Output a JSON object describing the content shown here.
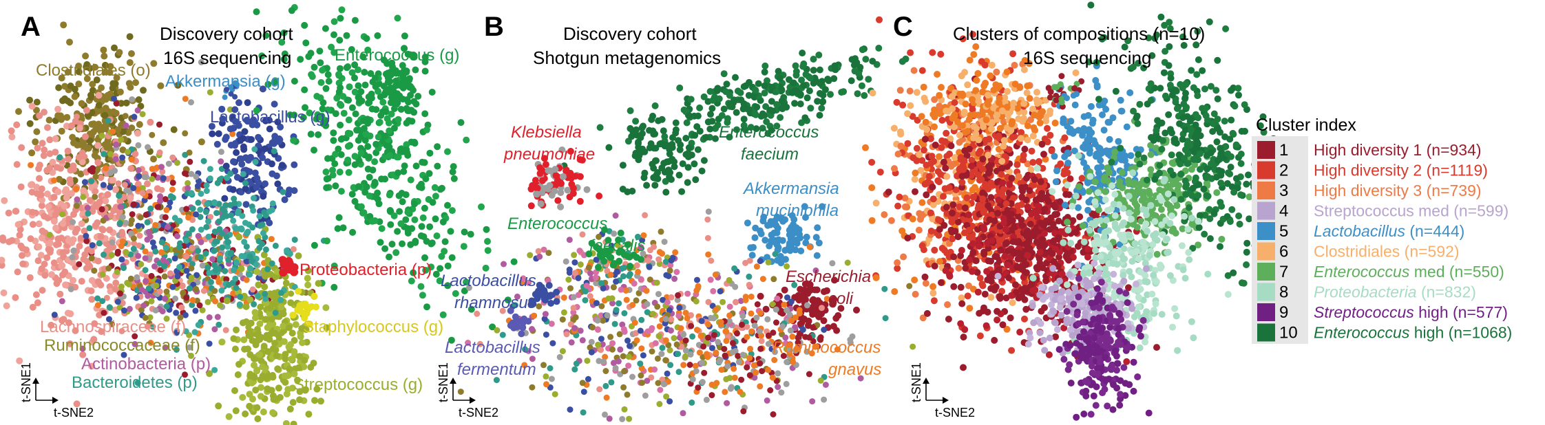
{
  "panels": [
    {
      "id": "A",
      "letter": "A",
      "title_lines": [
        "Discovery cohort",
        "16S sequencing"
      ]
    },
    {
      "id": "B",
      "letter": "B",
      "title_lines": [
        "Discovery cohort",
        "Shotgun metagenomics"
      ]
    },
    {
      "id": "C",
      "letter": "C",
      "title_lines": [
        "Clusters of compositions (n=10)",
        "16S sequencing"
      ]
    }
  ],
  "axes": {
    "y": "t-SNE1",
    "x": "t-SNE2"
  },
  "legend": {
    "title": "Cluster index",
    "items": [
      {
        "index": "1",
        "pre": "",
        "italic": "",
        "post": "High diversity 1 (n=934)",
        "color": "#9b1c2c"
      },
      {
        "index": "2",
        "pre": "",
        "italic": "",
        "post": "High diversity 2 (n=1119)",
        "color": "#d93a2e"
      },
      {
        "index": "3",
        "pre": "",
        "italic": "",
        "post": "High diversity 3 (n=739)",
        "color": "#ee7a45"
      },
      {
        "index": "4",
        "pre": "",
        "italic": "",
        "post": "Streptococcus med (n=599)",
        "color": "#b9a3cf"
      },
      {
        "index": "5",
        "pre": "",
        "italic": "Lactobacillus",
        "post": " (n=444)",
        "color": "#3d8fc7"
      },
      {
        "index": "6",
        "pre": "",
        "italic": "",
        "post": "Clostridiales (n=592)",
        "color": "#f6b06b"
      },
      {
        "index": "7",
        "pre": "",
        "italic": "Enterococcus",
        "post": " med (n=550)",
        "color": "#5daf5b"
      },
      {
        "index": "8",
        "pre": "",
        "italic": "Proteobacteria",
        "post": " (n=832)",
        "color": "#a7dcc4"
      },
      {
        "index": "9",
        "pre": "",
        "italic": "Streptococcus",
        "post": " high (n=577)",
        "color": "#702083"
      },
      {
        "index": "10",
        "pre": "",
        "italic": "Enterococcus",
        "post": " high (n=1068)",
        "color": "#19733a"
      }
    ]
  },
  "chart_data": [
    {
      "type": "scatter",
      "panel": "A",
      "title": "Discovery cohort 16S sequencing",
      "xlabel": "t-SNE2",
      "ylabel": "t-SNE1",
      "labels": [
        {
          "text": "Clostridiales (o)",
          "color": "#8f7b2c",
          "italic": false
        },
        {
          "text": "Akkermansia (g)",
          "color": "#3c8ec6",
          "italic": false
        },
        {
          "text": "Enterococcus (g)",
          "color": "#1a9a44",
          "italic": false
        },
        {
          "text": "Lactobacillus (g)",
          "color": "#3a4fa2",
          "italic": false
        },
        {
          "text": "Proteobacteria (p)",
          "color": "#e0202a",
          "italic": false
        },
        {
          "text": "Lachnospiraceae (f)",
          "color": "#ea8f87",
          "italic": false
        },
        {
          "text": "Ruminococcaceae (f)",
          "color": "#8a8a2a",
          "italic": false
        },
        {
          "text": "Actinobacteria (p)",
          "color": "#b05aa0",
          "italic": false
        },
        {
          "text": "Bacteroidetes (p)",
          "color": "#2f9a8a",
          "italic": false
        },
        {
          "text": "Staphylococcus (g)",
          "color": "#d8c81c",
          "italic": false
        },
        {
          "text": "Streptococcus (g)",
          "color": "#9aad2e",
          "italic": false
        }
      ]
    },
    {
      "type": "scatter",
      "panel": "B",
      "title": "Discovery cohort Shotgun metagenomics",
      "xlabel": "t-SNE2",
      "ylabel": "t-SNE1",
      "labels": [
        {
          "text": "Klebsiella pneumoniae",
          "color": "#e0202a",
          "italic": true
        },
        {
          "text": "Enterococcus faecium",
          "color": "#19733a",
          "italic": true
        },
        {
          "text": "Akkermansia muciniphila",
          "color": "#3c8ec6",
          "italic": true
        },
        {
          "text": "Enterococcus faecalis",
          "color": "#1a9a44",
          "italic": true
        },
        {
          "text": "Lactobacillus rhamnosus",
          "color": "#3a4fa2",
          "italic": true
        },
        {
          "text": "Escherichia coli",
          "color": "#9b1c2c",
          "italic": true
        },
        {
          "text": "Lactobacillus fermentum",
          "color": "#5a5ab4",
          "italic": true
        },
        {
          "text": "Ruminococcus gnavus",
          "color": "#ef7a24",
          "italic": true
        }
      ]
    },
    {
      "type": "scatter",
      "panel": "C",
      "title": "Clusters of compositions (n=10) 16S sequencing",
      "xlabel": "t-SNE2",
      "ylabel": "t-SNE1",
      "series": [
        "1",
        "2",
        "3",
        "4",
        "5",
        "6",
        "7",
        "8",
        "9",
        "10"
      ]
    }
  ]
}
